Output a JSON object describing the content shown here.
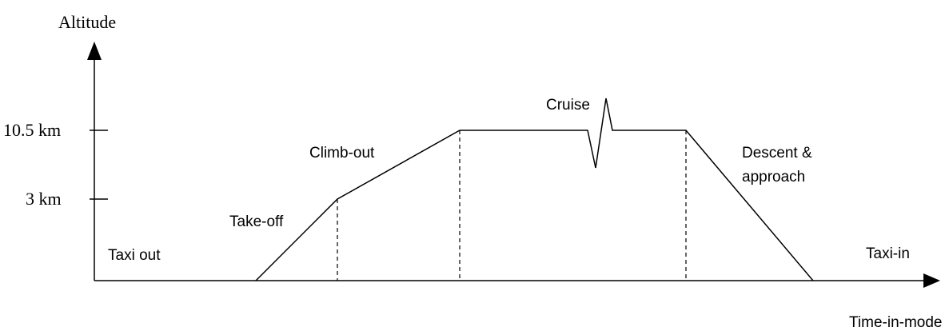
{
  "axes": {
    "y_label": "Altitude",
    "x_label": "Time-in-mode",
    "levels": [
      "10.5 km",
      "3 km"
    ]
  },
  "phases": [
    "Taxi out",
    "Take-off",
    "Climb-out",
    "Cruise",
    "Taxi-in"
  ],
  "descent_label": [
    "Descent &",
    "approach"
  ]
}
